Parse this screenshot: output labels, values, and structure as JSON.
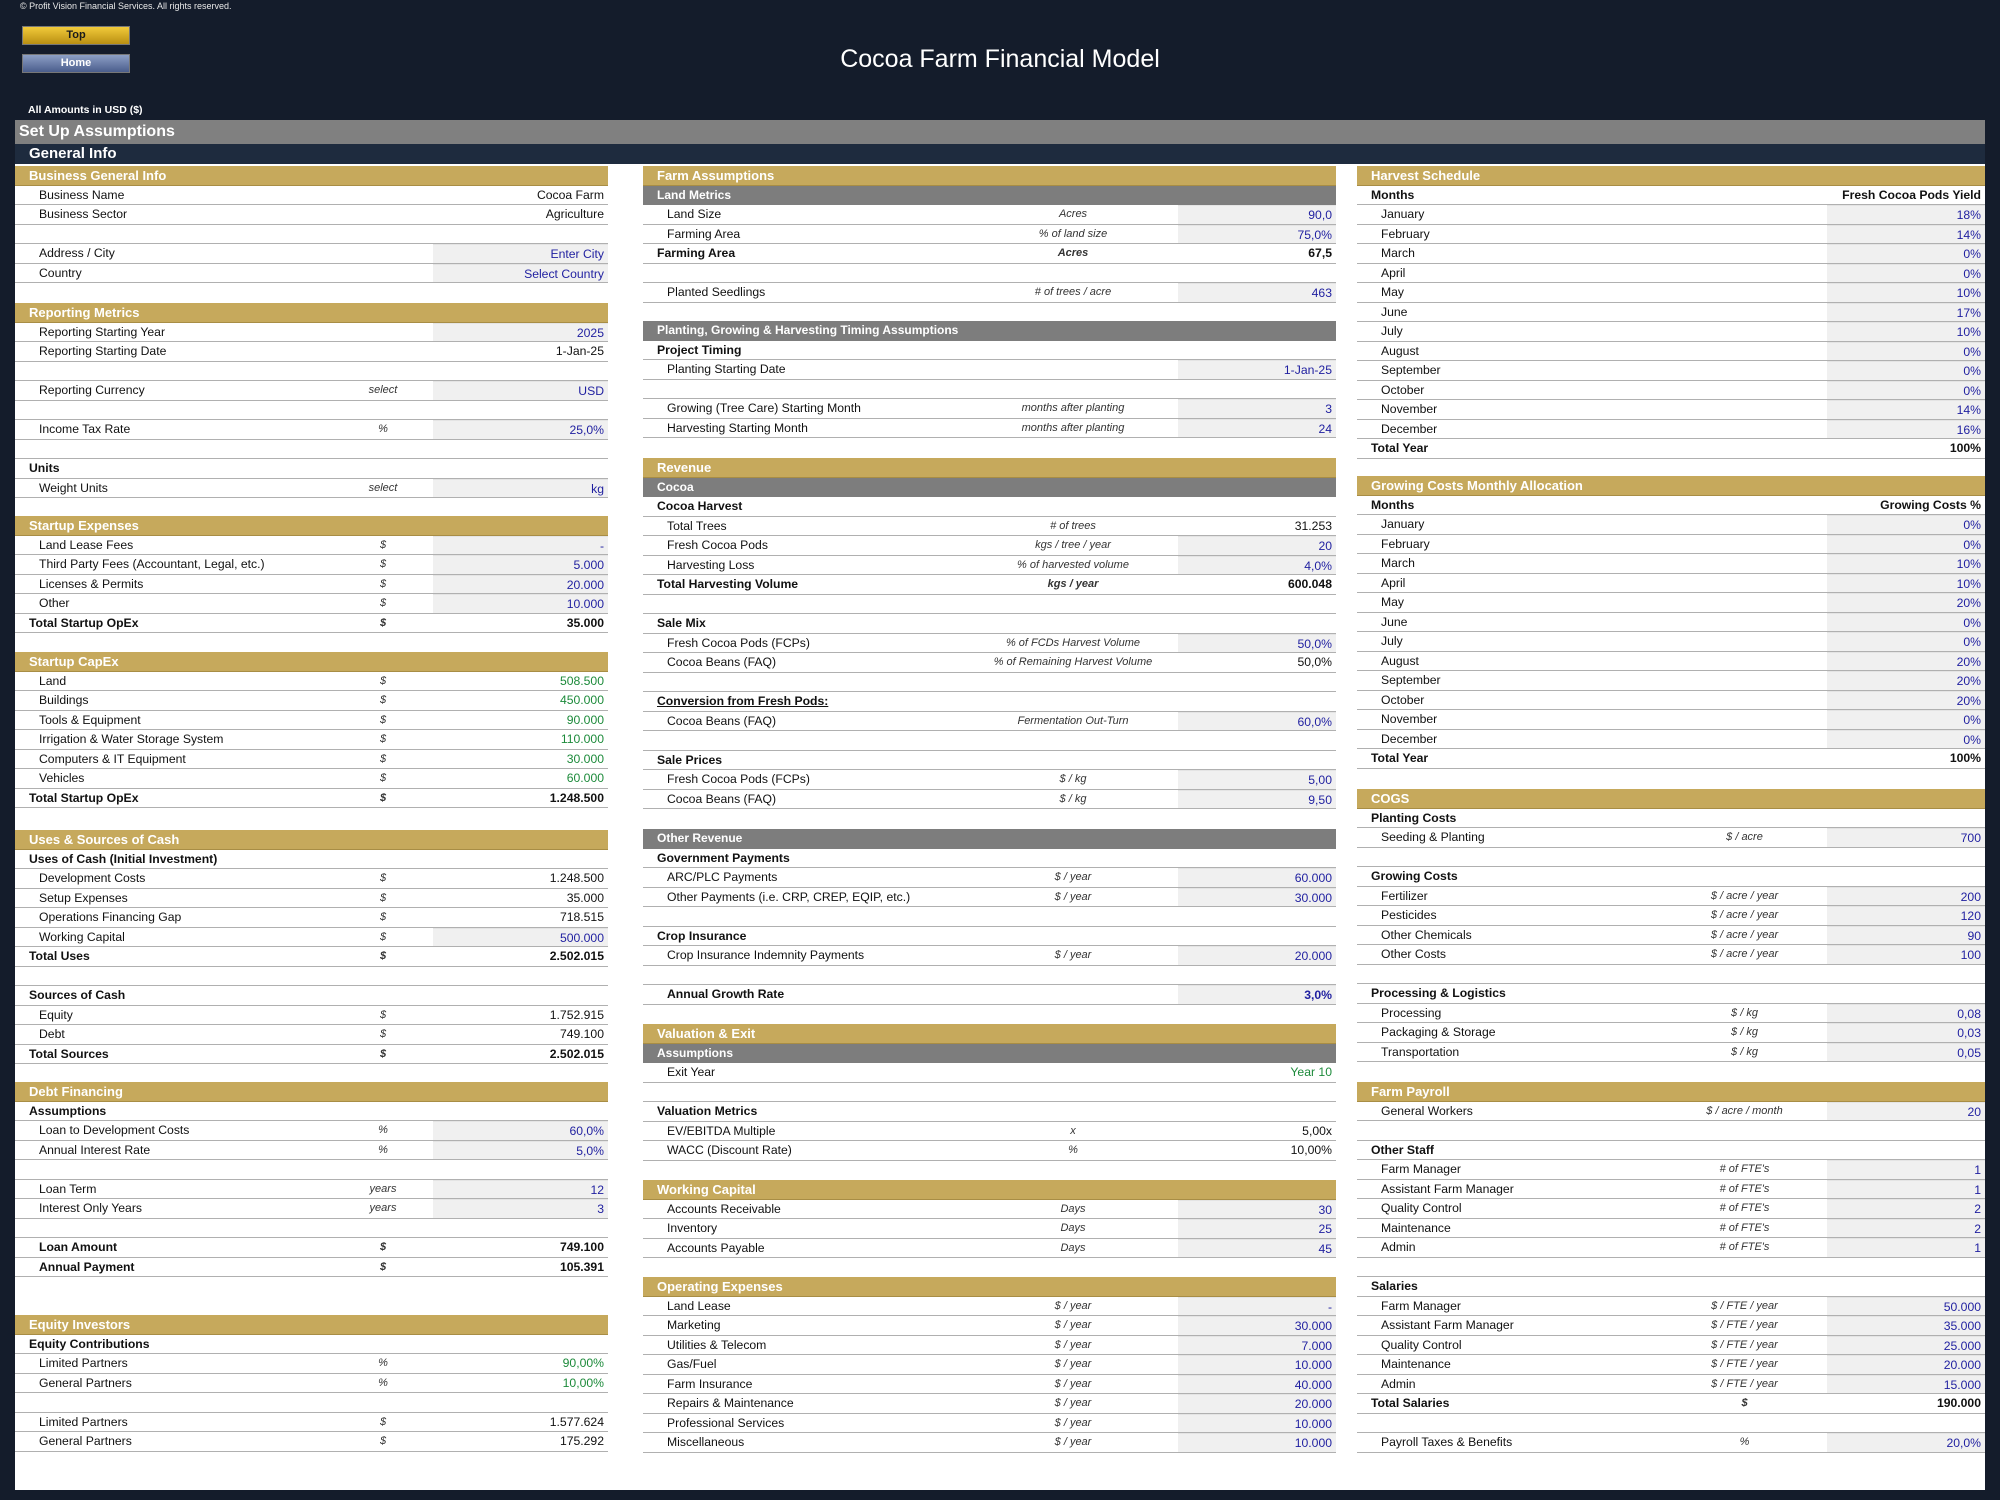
{
  "copyright": "© Profit Vision Financial Services. All rights reserved.",
  "nav": {
    "top": "Top",
    "home": "Home"
  },
  "title": "Cocoa Farm Financial Model",
  "amounts": "All Amounts in  USD ($)",
  "setup": "Set Up Assumptions",
  "general": "General Info",
  "business": {
    "header": "Business General Info",
    "rows": [
      {
        "label": "Business Name",
        "unit": "",
        "value": "Cocoa Farm"
      },
      {
        "label": "Business Sector",
        "unit": "",
        "value": "Agriculture"
      },
      {
        "label": "",
        "unit": "",
        "value": ""
      },
      {
        "label": "Address / City",
        "unit": "",
        "value": "Enter City"
      },
      {
        "label": "Country",
        "unit": "",
        "value": "Select Country"
      }
    ]
  },
  "reporting": {
    "header": "Reporting Metrics",
    "rows": [
      {
        "label": "Reporting Starting Year",
        "unit": "",
        "value": "2025"
      },
      {
        "label": "Reporting Starting Date",
        "unit": "",
        "value": "1-Jan-25"
      },
      {
        "label": "",
        "unit": "",
        "value": ""
      },
      {
        "label": "Reporting Currency",
        "unit": "select",
        "value": "USD"
      },
      {
        "label": "",
        "unit": "",
        "value": ""
      },
      {
        "label": "Income Tax Rate",
        "unit": "%",
        "value": "25,0%"
      },
      {
        "label": "",
        "unit": "",
        "value": ""
      },
      {
        "label": "Units",
        "unit": "",
        "value": ""
      },
      {
        "label": "Weight Units",
        "unit": "select",
        "value": "kg"
      }
    ]
  },
  "startup_exp": {
    "header": "Startup Expenses",
    "rows": [
      {
        "label": "Land Lease Fees",
        "unit": "$",
        "value": "-"
      },
      {
        "label": "Third Party Fees (Accountant, Legal, etc.)",
        "unit": "$",
        "value": "5.000"
      },
      {
        "label": "Licenses & Permits",
        "unit": "$",
        "value": "20.000"
      },
      {
        "label": "Other",
        "unit": "$",
        "value": "10.000"
      },
      {
        "label": "Total Startup OpEx",
        "unit": "$",
        "value": "35.000"
      }
    ]
  },
  "startup_capex": {
    "header": "Startup CapEx",
    "rows": [
      {
        "label": "Land",
        "unit": "$",
        "value": "508.500"
      },
      {
        "label": "Buildings",
        "unit": "$",
        "value": "450.000"
      },
      {
        "label": "Tools & Equipment",
        "unit": "$",
        "value": "90.000"
      },
      {
        "label": "Irrigation & Water Storage System",
        "unit": "$",
        "value": "110.000"
      },
      {
        "label": "Computers & IT Equipment",
        "unit": "$",
        "value": "30.000"
      },
      {
        "label": "Vehicles",
        "unit": "$",
        "value": "60.000"
      },
      {
        "label": "Total Startup OpEx",
        "unit": "$",
        "value": "1.248.500"
      }
    ]
  },
  "uses": {
    "header": "Uses & Sources of Cash",
    "rows": [
      {
        "label": "Uses of Cash (Initial Investment)",
        "unit": "",
        "value": ""
      },
      {
        "label": "Development Costs",
        "unit": "$",
        "value": "1.248.500"
      },
      {
        "label": "Setup Expenses",
        "unit": "$",
        "value": "35.000"
      },
      {
        "label": "Operations Financing Gap",
        "unit": "$",
        "value": "718.515"
      },
      {
        "label": "Working Capital",
        "unit": "$",
        "value": "500.000"
      },
      {
        "label": "Total Uses",
        "unit": "$",
        "value": "2.502.015"
      },
      {
        "label": "",
        "unit": "",
        "value": ""
      },
      {
        "label": "Sources of Cash",
        "unit": "",
        "value": ""
      },
      {
        "label": "Equity",
        "unit": "$",
        "value": "1.752.915"
      },
      {
        "label": "Debt",
        "unit": "$",
        "value": "749.100"
      },
      {
        "label": "Total Sources",
        "unit": "$",
        "value": "2.502.015"
      }
    ]
  },
  "debt": {
    "header": "Debt Financing",
    "rows": [
      {
        "label": "Assumptions",
        "unit": "",
        "value": ""
      },
      {
        "label": "Loan to Development Costs",
        "unit": "%",
        "value": "60,0%"
      },
      {
        "label": "Annual Interest Rate",
        "unit": "%",
        "value": "5,0%"
      },
      {
        "label": "",
        "unit": "",
        "value": ""
      },
      {
        "label": "Loan Term",
        "unit": "years",
        "value": "12"
      },
      {
        "label": "Interest Only Years",
        "unit": "years",
        "value": "3"
      },
      {
        "label": "",
        "unit": "",
        "value": ""
      },
      {
        "label": "Loan Amount",
        "unit": "$",
        "value": "749.100"
      },
      {
        "label": "Annual Payment",
        "unit": "$",
        "value": "105.391"
      }
    ]
  },
  "equity": {
    "header": "Equity Investors",
    "rows": [
      {
        "label": "Equity Contributions",
        "unit": "",
        "value": ""
      },
      {
        "label": "Limited Partners",
        "unit": "%",
        "value": "90,00%"
      },
      {
        "label": "General Partners",
        "unit": "%",
        "value": "10,00%"
      },
      {
        "label": "",
        "unit": "",
        "value": ""
      },
      {
        "label": "Limited Partners",
        "unit": "$",
        "value": "1.577.624"
      },
      {
        "label": "General Partners",
        "unit": "$",
        "value": "175.292"
      }
    ]
  },
  "farm": {
    "header": "Farm Assumptions",
    "sub": "Land Metrics",
    "rows": [
      {
        "label": "Land Size",
        "unit": "Acres",
        "value": "90,0"
      },
      {
        "label": "Farming Area",
        "unit": "% of land size",
        "value": "75,0%"
      },
      {
        "label": "Farming Area",
        "unit": "Acres",
        "value": "67,5"
      },
      {
        "label": "",
        "unit": "",
        "value": ""
      },
      {
        "label": "Planted Seedlings",
        "unit": "# of trees / acre",
        "value": "463"
      }
    ]
  },
  "timing": {
    "header": "Planting, Growing & Harvesting Timing Assumptions",
    "rows": [
      {
        "label": "Project Timing",
        "unit": "",
        "value": ""
      },
      {
        "label": "Planting Starting Date",
        "unit": "",
        "value": "1-Jan-25"
      },
      {
        "label": "",
        "unit": "",
        "value": ""
      },
      {
        "label": "Growing (Tree Care) Starting Month",
        "unit": "months after planting",
        "value": "3"
      },
      {
        "label": "Harvesting Starting Month",
        "unit": "months after planting",
        "value": "24"
      }
    ]
  },
  "revenue": {
    "header": "Revenue",
    "sub": "Cocoa",
    "rows": [
      {
        "label": "Cocoa Harvest",
        "unit": "",
        "value": ""
      },
      {
        "label": "Total Trees",
        "unit": "# of trees",
        "value": "31.253"
      },
      {
        "label": "Fresh Cocoa Pods",
        "unit": "kgs / tree / year",
        "value": "20"
      },
      {
        "label": "Harvesting Loss",
        "unit": "% of  harvested volume",
        "value": "4,0%"
      },
      {
        "label": "Total Harvesting Volume",
        "unit": "kgs / year",
        "value": "600.048"
      },
      {
        "label": "",
        "unit": "",
        "value": ""
      },
      {
        "label": "Sale Mix",
        "unit": "",
        "value": ""
      },
      {
        "label": "Fresh Cocoa Pods (FCPs)",
        "unit": "% of FCDs Harvest Volume",
        "value": "50,0%"
      },
      {
        "label": "Cocoa Beans (FAQ)",
        "unit": "% of Remaining Harvest Volume",
        "value": "50,0%"
      },
      {
        "label": "",
        "unit": "",
        "value": ""
      },
      {
        "label": "Conversion from Fresh Pods:",
        "unit": "",
        "value": ""
      },
      {
        "label": "Cocoa Beans (FAQ)",
        "unit": "Fermentation Out-Turn",
        "value": "60,0%"
      },
      {
        "label": "",
        "unit": "",
        "value": ""
      },
      {
        "label": "Sale Prices",
        "unit": "",
        "value": ""
      },
      {
        "label": "Fresh Cocoa Pods (FCPs)",
        "unit": "$ / kg",
        "value": "5,00"
      },
      {
        "label": "Cocoa Beans (FAQ)",
        "unit": "$ / kg",
        "value": "9,50"
      }
    ]
  },
  "other_rev": {
    "header": "Other Revenue",
    "rows": [
      {
        "label": "Government Payments",
        "unit": "",
        "value": ""
      },
      {
        "label": "ARC/PLC Payments",
        "unit": "$ / year",
        "value": "60.000"
      },
      {
        "label": "Other Payments (i.e. CRP, CREP, EQIP, etc.)",
        "unit": "$ / year",
        "value": "30.000"
      },
      {
        "label": "",
        "unit": "",
        "value": ""
      },
      {
        "label": "Crop Insurance",
        "unit": "",
        "value": ""
      },
      {
        "label": "Crop Insurance Indemnity Payments",
        "unit": "$ / year",
        "value": "20.000"
      },
      {
        "label": "",
        "unit": "",
        "value": ""
      },
      {
        "label": "Annual Growth Rate",
        "unit": "",
        "value": "3,0%"
      }
    ]
  },
  "valuation": {
    "header": "Valuation & Exit",
    "sub": "Assumptions",
    "rows": [
      {
        "label": "Exit Year",
        "unit": "",
        "value": "Year 10"
      },
      {
        "label": "",
        "unit": "",
        "value": ""
      },
      {
        "label": "Valuation Metrics",
        "unit": "",
        "value": ""
      },
      {
        "label": "EV/EBITDA Multiple",
        "unit": "x",
        "value": "5,00x"
      },
      {
        "label": "WACC (Discount Rate)",
        "unit": "%",
        "value": "10,00%"
      }
    ]
  },
  "wc": {
    "header": "Working Capital",
    "rows": [
      {
        "label": "Accounts Receivable",
        "unit": "Days",
        "value": "30"
      },
      {
        "label": "Inventory",
        "unit": "Days",
        "value": "25"
      },
      {
        "label": "Accounts Payable",
        "unit": "Days",
        "value": "45"
      }
    ]
  },
  "opex": {
    "header": "Operating Expenses",
    "rows": [
      {
        "label": "Land Lease",
        "unit": "$ / year",
        "value": "-"
      },
      {
        "label": "Marketing",
        "unit": "$ / year",
        "value": "30.000"
      },
      {
        "label": "Utilities & Telecom",
        "unit": "$ / year",
        "value": "7.000"
      },
      {
        "label": "Gas/Fuel",
        "unit": "$ / year",
        "value": "10.000"
      },
      {
        "label": "Farm Insurance",
        "unit": "$ / year",
        "value": "40.000"
      },
      {
        "label": "Repairs & Maintenance",
        "unit": "$ / year",
        "value": "20.000"
      },
      {
        "label": "Professional Services",
        "unit": "$ / year",
        "value": "10.000"
      },
      {
        "label": "Miscellaneous",
        "unit": "$ / year",
        "value": "10.000"
      }
    ]
  },
  "harvest": {
    "header": "Harvest Schedule",
    "rows": [
      {
        "label": "Months",
        "unit": "",
        "value": "Fresh Cocoa Pods Yield"
      },
      {
        "label": "January",
        "unit": "",
        "value": "18%"
      },
      {
        "label": "February",
        "unit": "",
        "value": "14%"
      },
      {
        "label": "March",
        "unit": "",
        "value": "0%"
      },
      {
        "label": "April",
        "unit": "",
        "value": "0%"
      },
      {
        "label": "May",
        "unit": "",
        "value": "10%"
      },
      {
        "label": "June",
        "unit": "",
        "value": "17%"
      },
      {
        "label": "July",
        "unit": "",
        "value": "10%"
      },
      {
        "label": "August",
        "unit": "",
        "value": "0%"
      },
      {
        "label": "September",
        "unit": "",
        "value": "0%"
      },
      {
        "label": "October",
        "unit": "",
        "value": "0%"
      },
      {
        "label": "November",
        "unit": "",
        "value": "14%"
      },
      {
        "label": "December",
        "unit": "",
        "value": "16%"
      },
      {
        "label": "Total Year",
        "unit": "",
        "value": "100%"
      }
    ]
  },
  "growing": {
    "header": "Growing Costs Monthly Allocation",
    "rows": [
      {
        "label": "Months",
        "unit": "",
        "value": "Growing Costs %"
      },
      {
        "label": "January",
        "unit": "",
        "value": "0%"
      },
      {
        "label": "February",
        "unit": "",
        "value": "0%"
      },
      {
        "label": "March",
        "unit": "",
        "value": "10%"
      },
      {
        "label": "April",
        "unit": "",
        "value": "10%"
      },
      {
        "label": "May",
        "unit": "",
        "value": "20%"
      },
      {
        "label": "June",
        "unit": "",
        "value": "0%"
      },
      {
        "label": "July",
        "unit": "",
        "value": "0%"
      },
      {
        "label": "August",
        "unit": "",
        "value": "20%"
      },
      {
        "label": "September",
        "unit": "",
        "value": "20%"
      },
      {
        "label": "October",
        "unit": "",
        "value": "20%"
      },
      {
        "label": "November",
        "unit": "",
        "value": "0%"
      },
      {
        "label": "December",
        "unit": "",
        "value": "0%"
      },
      {
        "label": "Total Year",
        "unit": "",
        "value": "100%"
      }
    ]
  },
  "cogs": {
    "header": "COGS",
    "rows": [
      {
        "label": "Planting Costs",
        "unit": "",
        "value": ""
      },
      {
        "label": "Seeding & Planting",
        "unit": "$ / acre",
        "value": "700"
      },
      {
        "label": "",
        "unit": "",
        "value": ""
      },
      {
        "label": "Growing Costs",
        "unit": "",
        "value": ""
      },
      {
        "label": "Fertilizer",
        "unit": "$ / acre / year",
        "value": "200"
      },
      {
        "label": "Pesticides",
        "unit": "$ / acre / year",
        "value": "120"
      },
      {
        "label": "Other Chemicals",
        "unit": "$ / acre / year",
        "value": "90"
      },
      {
        "label": "Other Costs",
        "unit": "$ / acre / year",
        "value": "100"
      },
      {
        "label": "",
        "unit": "",
        "value": ""
      },
      {
        "label": "Processing & Logistics",
        "unit": "",
        "value": ""
      },
      {
        "label": "Processing",
        "unit": "$ / kg",
        "value": "0,08"
      },
      {
        "label": "Packaging & Storage",
        "unit": "$ / kg",
        "value": "0,03"
      },
      {
        "label": "Transportation",
        "unit": "$ / kg",
        "value": "0,05"
      }
    ]
  },
  "payroll": {
    "header": "Farm Payroll",
    "rows": [
      {
        "label": "General Workers",
        "unit": "$ / acre / month",
        "value": "20"
      },
      {
        "label": "",
        "unit": "",
        "value": ""
      },
      {
        "label": "Other Staff",
        "unit": "",
        "value": ""
      },
      {
        "label": "Farm Manager",
        "unit": "# of FTE's",
        "value": "1"
      },
      {
        "label": "Assistant Farm Manager",
        "unit": "# of FTE's",
        "value": "1"
      },
      {
        "label": "Quality Control",
        "unit": "# of FTE's",
        "value": "2"
      },
      {
        "label": "Maintenance",
        "unit": "# of FTE's",
        "value": "2"
      },
      {
        "label": "Admin",
        "unit": "# of FTE's",
        "value": "1"
      },
      {
        "label": "",
        "unit": "",
        "value": ""
      },
      {
        "label": "Salaries",
        "unit": "",
        "value": ""
      },
      {
        "label": "Farm Manager",
        "unit": "$ / FTE / year",
        "value": "50.000"
      },
      {
        "label": "Assistant Farm Manager",
        "unit": "$ / FTE / year",
        "value": "35.000"
      },
      {
        "label": "Quality Control",
        "unit": "$ / FTE / year",
        "value": "25.000"
      },
      {
        "label": "Maintenance",
        "unit": "$ / FTE / year",
        "value": "20.000"
      },
      {
        "label": "Admin",
        "unit": "$ / FTE / year",
        "value": "15.000"
      },
      {
        "label": "Total Salaries",
        "unit": "$",
        "value": "190.000"
      },
      {
        "label": "",
        "unit": "",
        "value": ""
      },
      {
        "label": "Payroll Taxes & Benefits",
        "unit": "%",
        "value": "20,0%"
      }
    ]
  }
}
